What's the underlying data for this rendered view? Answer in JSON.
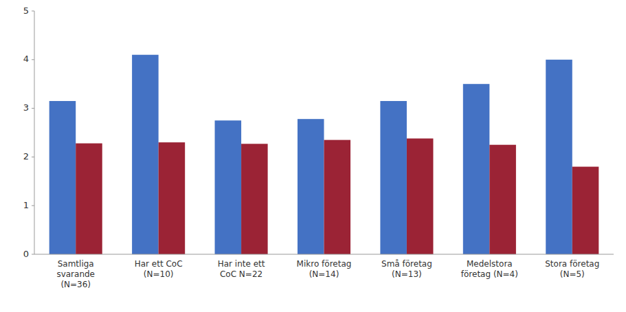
{
  "chart_data": {
    "type": "bar",
    "categories": [
      "Samtliga\nsvarande\n(N=36)",
      "Har ett CoC\n(N=10)",
      "Har inte ett\nCoC N=22",
      "Mikro företag\n(N=14)",
      "Små företag\n(N=13)",
      "Medelstora\nföretag (N=4)",
      "Stora företag\n(N=5)"
    ],
    "series": [
      {
        "color": "#4472C4",
        "values": [
          3.15,
          4.1,
          2.75,
          2.78,
          3.15,
          3.5,
          4.0
        ]
      },
      {
        "color": "#9B2335",
        "values": [
          2.28,
          2.3,
          2.27,
          2.35,
          2.38,
          2.25,
          1.8
        ]
      }
    ],
    "ylim": [
      0,
      5
    ],
    "yticks": [
      0,
      1,
      2,
      3,
      4,
      5
    ],
    "grid": false
  }
}
